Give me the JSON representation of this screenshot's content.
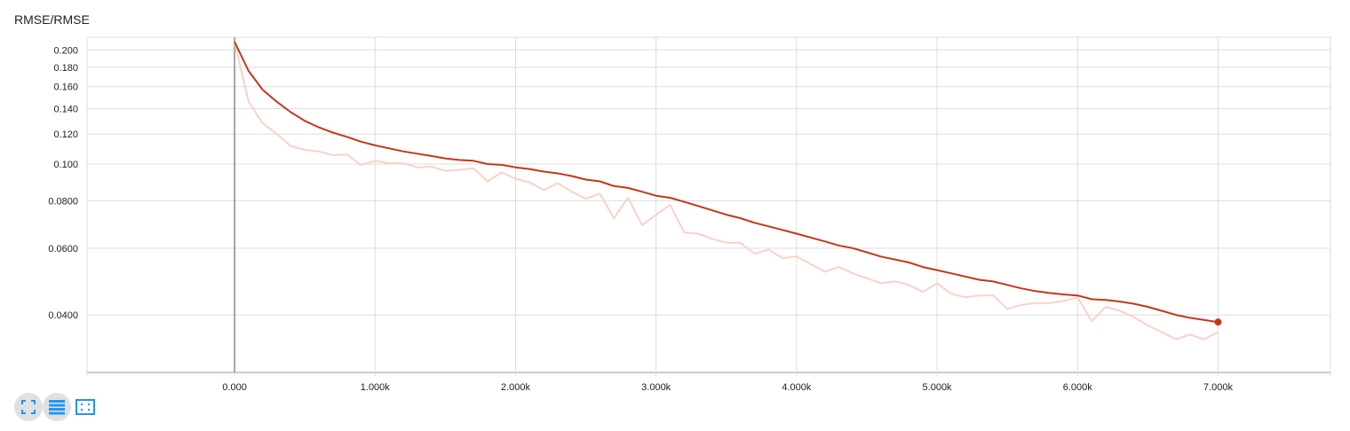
{
  "card": {
    "title": "RMSE/RMSE"
  },
  "colors": {
    "smoothed": "#c4371a",
    "raw": "#f8d2c9",
    "grid": "#dddddd",
    "axis": "#999999",
    "zero_line": "#8a8a8a",
    "button": "#2196f3"
  },
  "buttons": [
    {
      "name": "fit-domain-button",
      "icon": "fit-to-data-icon"
    },
    {
      "name": "toggle-log-scale-button",
      "icon": "lines-icon"
    },
    {
      "name": "zoom-reset-button",
      "icon": "dashed-frame-icon"
    }
  ],
  "chart_data": {
    "type": "line",
    "title": "RMSE/RMSE",
    "xlabel": "",
    "ylabel": "",
    "xlim": [
      -1050,
      7800
    ],
    "ylim": [
      0.0282,
      0.216
    ],
    "y_scale": "log",
    "grid": true,
    "x_ticks": [
      "0.000",
      "1.000k",
      "2.000k",
      "3.000k",
      "4.000k",
      "5.000k",
      "6.000k",
      "7.000k"
    ],
    "x_tick_values": [
      0,
      1000,
      2000,
      3000,
      4000,
      5000,
      6000,
      7000
    ],
    "y_ticks": [
      "0.200",
      "0.180",
      "0.160",
      "0.140",
      "0.120",
      "0.100",
      "0.0800",
      "0.0600",
      "0.0400"
    ],
    "y_tick_values": [
      0.2,
      0.18,
      0.16,
      0.14,
      0.12,
      0.1,
      0.08,
      0.06,
      0.04
    ],
    "series": [
      {
        "role": "raw",
        "x": [
          0,
          100,
          200,
          300,
          400,
          500,
          600,
          700,
          800,
          900,
          1000,
          1100,
          1200,
          1300,
          1400,
          1500,
          1600,
          1700,
          1800,
          1900,
          2000,
          2100,
          2200,
          2300,
          2400,
          2500,
          2600,
          2700,
          2800,
          2900,
          3000,
          3100,
          3200,
          3300,
          3400,
          3500,
          3600,
          3700,
          3800,
          3900,
          4000,
          4100,
          4200,
          4300,
          4400,
          4500,
          4600,
          4700,
          4800,
          4900,
          5000,
          5100,
          5200,
          5300,
          5400,
          5500,
          5600,
          5700,
          5800,
          5900,
          6000,
          6100,
          6200,
          6300,
          6400,
          6500,
          6600,
          6700,
          6800,
          6900,
          7000
        ],
        "y": [
          0.21,
          0.146,
          0.128,
          0.12,
          0.1115,
          0.109,
          0.108,
          0.1055,
          0.106,
          0.0995,
          0.102,
          0.1005,
          0.1005,
          0.098,
          0.0985,
          0.096,
          0.0965,
          0.0975,
          0.09,
          0.095,
          0.0915,
          0.0895,
          0.0855,
          0.089,
          0.0845,
          0.081,
          0.0835,
          0.072,
          0.0815,
          0.069,
          0.0735,
          0.078,
          0.066,
          0.0655,
          0.0635,
          0.062,
          0.062,
          0.058,
          0.0595,
          0.0565,
          0.057,
          0.0545,
          0.052,
          0.0535,
          0.0515,
          0.05,
          0.0485,
          0.049,
          0.048,
          0.046,
          0.0485,
          0.0455,
          0.0445,
          0.045,
          0.045,
          0.0415,
          0.0425,
          0.043,
          0.043,
          0.0435,
          0.0445,
          0.0385,
          0.042,
          0.041,
          0.0395,
          0.0375,
          0.036,
          0.0345,
          0.0355,
          0.0345,
          0.036
        ]
      },
      {
        "role": "smoothed",
        "x": [
          0,
          100,
          200,
          300,
          400,
          500,
          600,
          700,
          800,
          900,
          1000,
          1100,
          1200,
          1300,
          1400,
          1500,
          1600,
          1700,
          1800,
          1900,
          2000,
          2100,
          2200,
          2300,
          2400,
          2500,
          2600,
          2700,
          2800,
          2900,
          3000,
          3100,
          3200,
          3300,
          3400,
          3500,
          3600,
          3700,
          3800,
          3900,
          4000,
          4100,
          4200,
          4300,
          4400,
          4500,
          4600,
          4700,
          4800,
          4900,
          5000,
          5100,
          5200,
          5300,
          5400,
          5500,
          5600,
          5700,
          5800,
          5900,
          6000,
          6100,
          6200,
          6300,
          6400,
          6500,
          6600,
          6700,
          6800,
          6900,
          7000
        ],
        "y": [
          0.21,
          0.176,
          0.157,
          0.146,
          0.137,
          0.13,
          0.125,
          0.121,
          0.118,
          0.1145,
          0.112,
          0.11,
          0.108,
          0.1065,
          0.105,
          0.1035,
          0.1025,
          0.102,
          0.1,
          0.0995,
          0.098,
          0.097,
          0.0955,
          0.0945,
          0.093,
          0.091,
          0.09,
          0.0875,
          0.0865,
          0.0845,
          0.0825,
          0.0815,
          0.0795,
          0.0775,
          0.0755,
          0.0735,
          0.072,
          0.07,
          0.0685,
          0.067,
          0.0655,
          0.064,
          0.0625,
          0.061,
          0.06,
          0.0585,
          0.057,
          0.056,
          0.055,
          0.0535,
          0.0525,
          0.0515,
          0.0505,
          0.0495,
          0.049,
          0.048,
          0.047,
          0.0462,
          0.0457,
          0.0453,
          0.045,
          0.044,
          0.0438,
          0.0434,
          0.0428,
          0.042,
          0.041,
          0.04,
          0.0393,
          0.0388,
          0.0383
        ]
      }
    ],
    "last_point": {
      "x": 7000,
      "y": 0.0383
    }
  }
}
